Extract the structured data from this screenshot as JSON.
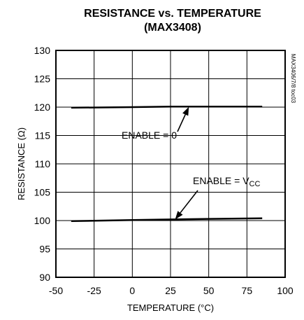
{
  "chart_data": {
    "type": "line",
    "title": "RESISTANCE vs. TEMPERATURE",
    "subtitle": "(MAX3408)",
    "xlabel": "TEMPERATURE (°C)",
    "ylabel": "RESISTANCE (Ω)",
    "xlim": [
      -50,
      100
    ],
    "ylim": [
      90,
      130
    ],
    "xticks": [
      -50,
      -25,
      0,
      25,
      50,
      75,
      100
    ],
    "yticks": [
      90,
      95,
      100,
      105,
      110,
      115,
      120,
      125,
      130
    ],
    "grid": true,
    "side_note": "MAX3406/7/8 toc03",
    "series": [
      {
        "name": "ENABLE = 0",
        "x": [
          -40,
          0,
          25,
          50,
          85
        ],
        "y": [
          119.9,
          120.0,
          120.1,
          120.1,
          120.1
        ]
      },
      {
        "name": "ENABLE = VCC",
        "x": [
          -40,
          0,
          25,
          50,
          85
        ],
        "y": [
          99.9,
          100.1,
          100.2,
          100.3,
          100.4
        ]
      }
    ],
    "annotations": [
      {
        "text_main": "ENABLE = 0",
        "text_sub": "",
        "at": [
          37,
          120.05
        ]
      },
      {
        "text_main": "ENABLE = V",
        "text_sub": "CC",
        "at": [
          28,
          100.2
        ]
      }
    ]
  }
}
